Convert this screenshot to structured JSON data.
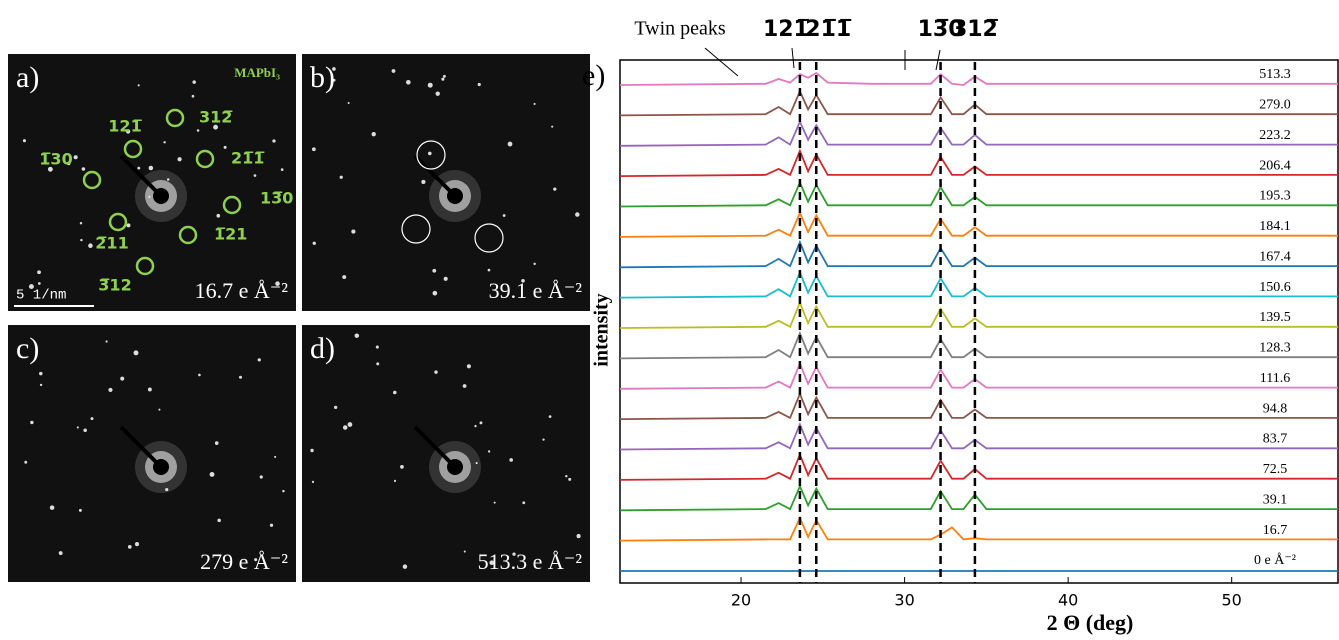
{
  "panels": [
    {
      "letter": "a)",
      "dose": "16.7 e Å⁻²",
      "material": "MAPbI₃",
      "scale_bar": "5 1/nm",
      "spots": [
        "312̅",
        "121̅",
        "21̅1̅",
        "1̅30",
        "13̅0",
        "2̅11",
        "1̅21",
        "3̅12"
      ]
    },
    {
      "letter": "b)",
      "dose": "39.1 e Å⁻²"
    },
    {
      "letter": "c)",
      "dose": "279 e Å⁻²"
    },
    {
      "letter": "d)",
      "dose": "513.3 e Å⁻²"
    }
  ],
  "chart_data": {
    "type": "line",
    "panel": "e)",
    "xlabel": "2 Θ (deg)",
    "ylabel": "intensity",
    "annotation": "Twin peaks",
    "peaks": [
      {
        "x": 23.6,
        "label": "121̅"
      },
      {
        "x": 24.6,
        "label": "21̅1̅"
      },
      {
        "x": 32.2,
        "label": "13̅0"
      },
      {
        "x": 34.3,
        "label": "312̅"
      }
    ],
    "xlim": [
      12.6,
      56.5
    ],
    "xticks": [
      20,
      30,
      40,
      50
    ],
    "x": [
      12.6,
      21.5,
      22.3,
      23,
      23.6,
      24.1,
      24.6,
      25.3,
      28,
      31.6,
      32.2,
      32.9,
      33.6,
      34.3,
      35,
      45,
      56.5
    ],
    "series": [
      {
        "name": "513.3",
        "color": "#e377c2",
        "values": [
          0,
          1,
          5,
          2,
          9,
          6,
          10,
          2,
          1,
          1,
          9,
          1,
          0,
          7,
          1,
          1,
          1
        ]
      },
      {
        "name": "279.0",
        "color": "#8c564b",
        "values": [
          0,
          1,
          7,
          1,
          20,
          5,
          17,
          1,
          1,
          1,
          15,
          1,
          1,
          9,
          1,
          1,
          1
        ]
      },
      {
        "name": "223.2",
        "color": "#9467bd",
        "values": [
          0,
          1,
          7,
          1,
          20,
          5,
          17,
          1,
          1,
          1,
          15,
          1,
          1,
          9,
          1,
          1,
          1
        ]
      },
      {
        "name": "206.4",
        "color": "#d62728",
        "values": [
          0,
          1,
          6,
          1,
          21,
          4,
          18,
          1,
          1,
          1,
          16,
          1,
          1,
          8,
          1,
          1,
          1
        ]
      },
      {
        "name": "195.3",
        "color": "#2ca02c",
        "values": [
          0,
          1,
          6,
          1,
          20,
          4,
          18,
          1,
          1,
          1,
          16,
          1,
          1,
          8,
          1,
          1,
          1
        ]
      },
      {
        "name": "184.1",
        "color": "#ff7f0e",
        "values": [
          0,
          1,
          6,
          1,
          20,
          4,
          18,
          1,
          1,
          1,
          15,
          1,
          1,
          8,
          1,
          1,
          1
        ]
      },
      {
        "name": "167.4",
        "color": "#1f77b4",
        "values": [
          0,
          1,
          7,
          1,
          21,
          4,
          18,
          1,
          1,
          1,
          16,
          1,
          1,
          8,
          1,
          1,
          1
        ]
      },
      {
        "name": "150.6",
        "color": "#17becf",
        "values": [
          0,
          1,
          7,
          1,
          21,
          4,
          18,
          1,
          1,
          1,
          16,
          1,
          1,
          8,
          1,
          1,
          1
        ]
      },
      {
        "name": "139.5",
        "color": "#bcbd22",
        "values": [
          0,
          1,
          6,
          1,
          21,
          4,
          18,
          1,
          1,
          1,
          16,
          1,
          1,
          8,
          1,
          1,
          1
        ]
      },
      {
        "name": "128.3",
        "color": "#7f7f7f",
        "values": [
          0,
          1,
          7,
          1,
          21,
          4,
          18,
          1,
          1,
          1,
          16,
          1,
          1,
          8,
          1,
          1,
          1
        ]
      },
      {
        "name": "111.6",
        "color": "#e377c2",
        "values": [
          0,
          1,
          6,
          1,
          21,
          4,
          18,
          1,
          1,
          1,
          16,
          1,
          1,
          8,
          1,
          1,
          1
        ]
      },
      {
        "name": "94.8",
        "color": "#8c564b",
        "values": [
          0,
          1,
          6,
          1,
          21,
          4,
          18,
          1,
          1,
          1,
          16,
          1,
          1,
          8,
          1,
          1,
          1
        ]
      },
      {
        "name": "83.7",
        "color": "#9467bd",
        "values": [
          0,
          1,
          6,
          1,
          21,
          4,
          18,
          1,
          1,
          1,
          16,
          1,
          1,
          8,
          1,
          1,
          1
        ]
      },
      {
        "name": "72.5",
        "color": "#d62728",
        "values": [
          0,
          1,
          6,
          1,
          21,
          4,
          18,
          1,
          1,
          1,
          16,
          1,
          1,
          9,
          1,
          1,
          1
        ]
      },
      {
        "name": "39.1",
        "color": "#2ca02c",
        "values": [
          0,
          1,
          6,
          1,
          20,
          4,
          18,
          1,
          1,
          1,
          16,
          1,
          1,
          13,
          1,
          1,
          1
        ]
      },
      {
        "name": "16.7",
        "color": "#ff7f0e",
        "values": [
          0,
          1,
          1,
          1,
          19,
          3,
          17,
          1,
          1,
          1,
          5,
          11,
          1,
          2,
          1,
          1,
          1
        ]
      },
      {
        "name": "0 e Å⁻²",
        "color": "#1f77b4",
        "values": [
          0,
          0,
          0,
          0,
          0,
          0,
          0,
          0,
          0,
          0,
          0,
          0,
          0,
          0,
          0,
          0,
          0
        ]
      }
    ]
  }
}
